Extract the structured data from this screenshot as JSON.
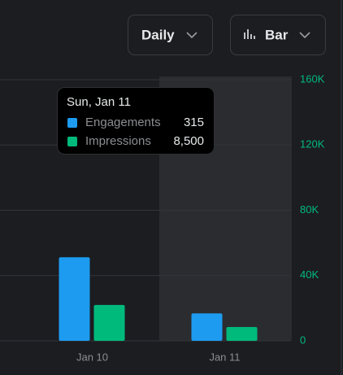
{
  "controls": {
    "interval": "Daily",
    "chart_type": "Bar"
  },
  "chart_data": {
    "type": "bar",
    "categories": [
      "Jan 10",
      "Jan 11"
    ],
    "series": [
      {
        "name": "Engagements",
        "color": "#1d9bf0",
        "values": [
          960,
          315
        ]
      },
      {
        "name": "Impressions",
        "color": "#00ba7c",
        "axis": "y2",
        "values": [
          22000,
          8500
        ],
        "value_labels": [
          null,
          "8,500"
        ]
      }
    ],
    "ylim": [
      0,
      3000
    ],
    "y2lim": [
      0,
      160000
    ],
    "y2ticks": [
      0,
      {
        "value": 40000,
        "label": "40K"
      },
      {
        "value": 80000,
        "label": "80K"
      },
      {
        "value": 120000,
        "label": "120K"
      },
      {
        "value": 160000,
        "label": "160K"
      }
    ],
    "y2_color": "#00ba7c",
    "grid": true,
    "hovered_index": 1,
    "tooltip_title": "Sun, Jan 11"
  }
}
